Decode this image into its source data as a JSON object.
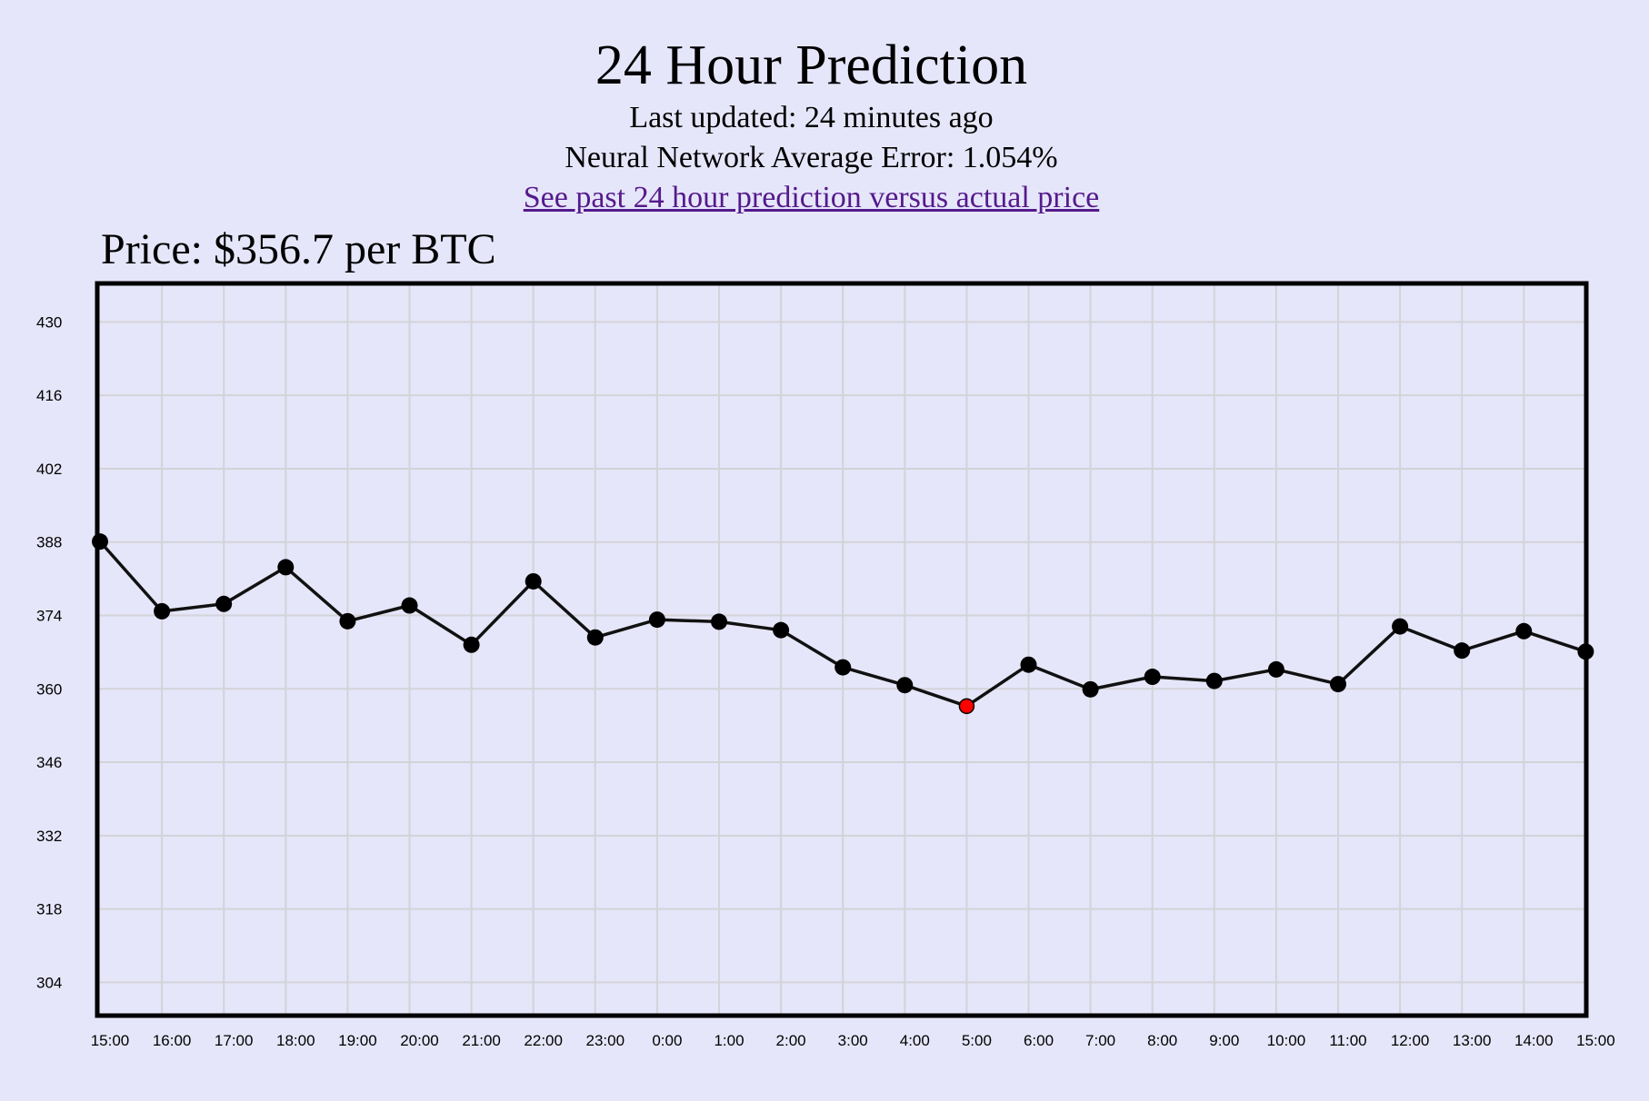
{
  "header": {
    "title": "24 Hour Prediction",
    "last_updated": "Last updated: 24 minutes ago",
    "average_error": "Neural Network Average Error: 1.054%",
    "past_link": "See past 24 hour prediction versus actual price"
  },
  "price_label": "Price: $356.7 per BTC",
  "colors": {
    "background": "#e6e6fa",
    "line": "#111111",
    "point": "#000000",
    "highlight_point": "#ff0000",
    "grid": "#d3d3d8",
    "frame": "#000000",
    "link": "#551a8b"
  },
  "chart_data": {
    "type": "line",
    "title": "",
    "xlabel": "",
    "ylabel": "",
    "categories": [
      "15:00",
      "16:00",
      "17:00",
      "18:00",
      "19:00",
      "20:00",
      "21:00",
      "22:00",
      "23:00",
      "0:00",
      "1:00",
      "2:00",
      "3:00",
      "4:00",
      "5:00",
      "6:00",
      "7:00",
      "8:00",
      "9:00",
      "10:00",
      "11:00",
      "12:00",
      "13:00",
      "14:00",
      "15:00"
    ],
    "yticks": [
      304,
      318,
      332,
      346,
      360,
      374,
      388,
      402,
      416,
      430
    ],
    "ylim": [
      298,
      437
    ],
    "grid": true,
    "series": [
      {
        "values": [
          388.1,
          374.8,
          376.2,
          383.2,
          372.9,
          375.9,
          368.4,
          380.5,
          369.8,
          373.2,
          372.8,
          371.2,
          364.1,
          360.7,
          356.7,
          364.6,
          359.9,
          362.3,
          361.5,
          363.7,
          360.9,
          371.9,
          367.3,
          371.0,
          367.1
        ],
        "highlight_index": 14
      }
    ]
  }
}
